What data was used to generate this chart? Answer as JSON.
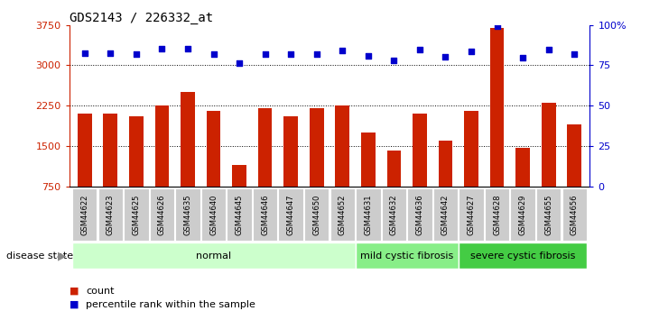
{
  "title": "GDS2143 / 226332_at",
  "samples": [
    "GSM44622",
    "GSM44623",
    "GSM44625",
    "GSM44626",
    "GSM44635",
    "GSM44640",
    "GSM44645",
    "GSM44646",
    "GSM44647",
    "GSM44650",
    "GSM44652",
    "GSM44631",
    "GSM44632",
    "GSM44636",
    "GSM44642",
    "GSM44627",
    "GSM44628",
    "GSM44629",
    "GSM44655",
    "GSM44656"
  ],
  "counts": [
    2100,
    2100,
    2050,
    2250,
    2500,
    2150,
    1150,
    2200,
    2050,
    2200,
    2250,
    1750,
    1420,
    2100,
    1600,
    2150,
    3700,
    1470,
    2300,
    1900
  ],
  "percentiles": [
    3230,
    3230,
    3210,
    3310,
    3310,
    3210,
    3040,
    3210,
    3210,
    3210,
    3270,
    3170,
    3090,
    3290,
    3160,
    3260,
    3730,
    3140,
    3300,
    3200
  ],
  "group_info": [
    {
      "label": "normal",
      "start": 0,
      "end": 10,
      "color": "#ccffcc"
    },
    {
      "label": "mild cystic fibrosis",
      "start": 11,
      "end": 14,
      "color": "#88ee88"
    },
    {
      "label": "severe cystic fibrosis",
      "start": 15,
      "end": 19,
      "color": "#44cc44"
    }
  ],
  "ylim": [
    750,
    3750
  ],
  "yticks_left": [
    750,
    1500,
    2250,
    3000,
    3750
  ],
  "ytick_labels_right": [
    "0",
    "25",
    "50",
    "75",
    "100%"
  ],
  "bar_color": "#cc2200",
  "dot_color": "#0000cc",
  "label_box_color": "#cccccc",
  "disease_state_label": "disease state",
  "legend_count_label": "count",
  "legend_percentile_label": "percentile rank within the sample"
}
